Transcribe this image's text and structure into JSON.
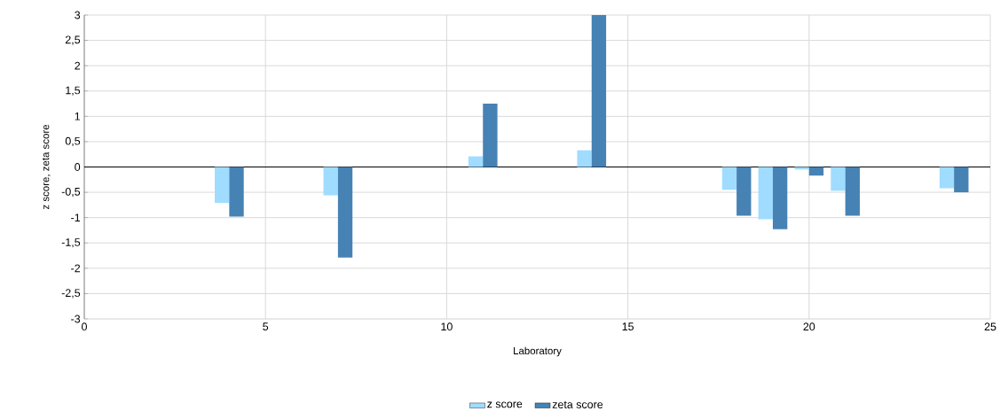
{
  "chart_data": {
    "type": "bar",
    "xlabel": "Laboratory",
    "ylabel": "z score, zeta score",
    "x": [
      4,
      7,
      11,
      14,
      18,
      19,
      20,
      21,
      24
    ],
    "series": [
      {
        "name": "z score",
        "color": "#a0dcff",
        "values": [
          -0.71,
          -0.56,
          0.21,
          0.33,
          -0.45,
          -1.03,
          -0.05,
          -0.47,
          -0.42
        ]
      },
      {
        "name": "zeta score",
        "color": "#4682b4",
        "values": [
          -0.98,
          -1.79,
          1.25,
          3.0,
          -0.96,
          -1.23,
          -0.17,
          -0.96,
          -0.5
        ]
      }
    ],
    "xlim": [
      0,
      25
    ],
    "xticks": [
      0,
      5,
      10,
      15,
      20,
      25
    ],
    "ylim": [
      -3,
      3
    ],
    "yticks": [
      -3,
      {
        "value": -2.5,
        "label": "-2,5"
      },
      -2,
      {
        "value": -1.5,
        "label": "-1,5"
      },
      -1,
      {
        "value": -0.5,
        "label": "-0,5"
      },
      0,
      {
        "value": 0.5,
        "label": "0,5"
      },
      1,
      {
        "value": 1.5,
        "label": "1,5"
      },
      2,
      {
        "value": 2.5,
        "label": "2,5"
      },
      3
    ],
    "grid": true,
    "legend": "bottom"
  }
}
